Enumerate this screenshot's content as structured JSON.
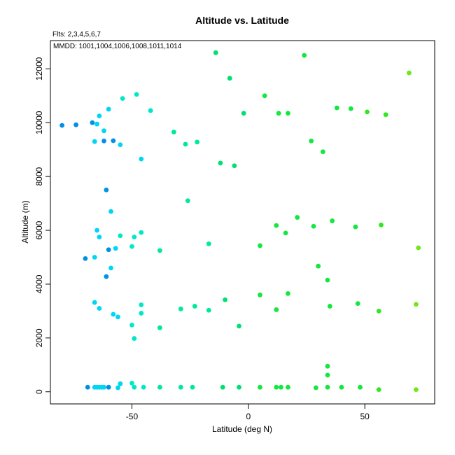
{
  "chart_data": {
    "type": "scatter",
    "title": "Altitude vs. Latitude",
    "subtitle": "Flts: 2,3,4,5,6,7",
    "annotation": "MMDD: 1001,1004,1006,1008,1011,1014",
    "xlabel": "Latitude (deg N)",
    "ylabel": "Altitude (m)",
    "xlim": [
      -85,
      80
    ],
    "ylim": [
      -450,
      13050
    ],
    "xticks": [
      -50,
      0,
      50
    ],
    "yticks": [
      0,
      2000,
      4000,
      6000,
      8000,
      10000,
      12000
    ],
    "grid": false,
    "color_encoding": "points colored by latitude (blue in south, cyan, green, yellow-green in north)",
    "points": [
      {
        "x": -80,
        "y": 9900,
        "color": "#0090e8"
      },
      {
        "x": -74,
        "y": 9920,
        "color": "#0090e8"
      },
      {
        "x": -67,
        "y": 10000,
        "color": "#0090e8"
      },
      {
        "x": -65,
        "y": 9950,
        "color": "#00d6f4"
      },
      {
        "x": -64,
        "y": 10250,
        "color": "#00d6f4"
      },
      {
        "x": -62,
        "y": 9700,
        "color": "#00d6f4"
      },
      {
        "x": -60,
        "y": 10500,
        "color": "#00d6f4"
      },
      {
        "x": -62,
        "y": 9320,
        "color": "#0090e8"
      },
      {
        "x": -58,
        "y": 9330,
        "color": "#0090e8"
      },
      {
        "x": -66,
        "y": 9300,
        "color": "#00d6f4"
      },
      {
        "x": -55,
        "y": 9180,
        "color": "#00d6f4"
      },
      {
        "x": -54,
        "y": 10900,
        "color": "#00e8c8"
      },
      {
        "x": -48,
        "y": 11050,
        "color": "#00e8c8"
      },
      {
        "x": -42,
        "y": 10450,
        "color": "#00e8c8"
      },
      {
        "x": -46,
        "y": 8650,
        "color": "#00d6f4"
      },
      {
        "x": -32,
        "y": 9650,
        "color": "#00e8a0"
      },
      {
        "x": -27,
        "y": 9200,
        "color": "#00e8a0"
      },
      {
        "x": -22,
        "y": 9280,
        "color": "#00e8a0"
      },
      {
        "x": -61,
        "y": 7500,
        "color": "#0090e8"
      },
      {
        "x": -59,
        "y": 6700,
        "color": "#00d6f4"
      },
      {
        "x": -26,
        "y": 7100,
        "color": "#00e8a0"
      },
      {
        "x": -65,
        "y": 6000,
        "color": "#00d6f4"
      },
      {
        "x": -64,
        "y": 5750,
        "color": "#00d6f4"
      },
      {
        "x": -55,
        "y": 5800,
        "color": "#00e8c8"
      },
      {
        "x": -49,
        "y": 5750,
        "color": "#00e8c8"
      },
      {
        "x": -46,
        "y": 5920,
        "color": "#00e8c8"
      },
      {
        "x": -60,
        "y": 5280,
        "color": "#0090e8"
      },
      {
        "x": -57,
        "y": 5330,
        "color": "#00d6f4"
      },
      {
        "x": -50,
        "y": 5400,
        "color": "#00e8c8"
      },
      {
        "x": -38,
        "y": 5250,
        "color": "#00e8a0"
      },
      {
        "x": -70,
        "y": 4950,
        "color": "#0090e8"
      },
      {
        "x": -66,
        "y": 5000,
        "color": "#00d6f4"
      },
      {
        "x": -59,
        "y": 4600,
        "color": "#00d6f4"
      },
      {
        "x": -61,
        "y": 4280,
        "color": "#0090e8"
      },
      {
        "x": -66,
        "y": 3320,
        "color": "#00d6f4"
      },
      {
        "x": -64,
        "y": 3100,
        "color": "#00d6f4"
      },
      {
        "x": -46,
        "y": 3230,
        "color": "#00e8c8"
      },
      {
        "x": -46,
        "y": 2920,
        "color": "#00e8c8"
      },
      {
        "x": -58,
        "y": 2880,
        "color": "#00d6f4"
      },
      {
        "x": -56,
        "y": 2780,
        "color": "#00d6f4"
      },
      {
        "x": -50,
        "y": 2480,
        "color": "#00e8c8"
      },
      {
        "x": -38,
        "y": 2380,
        "color": "#00e8a0"
      },
      {
        "x": -49,
        "y": 1980,
        "color": "#00e8c8"
      },
      {
        "x": -29,
        "y": 3080,
        "color": "#00e8a0"
      },
      {
        "x": -23,
        "y": 3180,
        "color": "#00e8a0"
      },
      {
        "x": -17,
        "y": 3030,
        "color": "#00e8a0"
      },
      {
        "x": -17,
        "y": 5500,
        "color": "#00e8a0"
      },
      {
        "x": -14,
        "y": 12600,
        "color": "#00e070"
      },
      {
        "x": -8,
        "y": 11650,
        "color": "#00e070"
      },
      {
        "x": -12,
        "y": 8500,
        "color": "#00e070"
      },
      {
        "x": -6,
        "y": 8400,
        "color": "#00e070"
      },
      {
        "x": -2,
        "y": 10350,
        "color": "#00e070"
      },
      {
        "x": 7,
        "y": 11000,
        "color": "#14e840"
      },
      {
        "x": 13,
        "y": 10350,
        "color": "#14e840"
      },
      {
        "x": 17,
        "y": 10350,
        "color": "#14e840"
      },
      {
        "x": 24,
        "y": 12500,
        "color": "#14e840"
      },
      {
        "x": 27,
        "y": 9320,
        "color": "#14e840"
      },
      {
        "x": 32,
        "y": 8920,
        "color": "#14e840"
      },
      {
        "x": 38,
        "y": 10550,
        "color": "#14e840"
      },
      {
        "x": 44,
        "y": 10520,
        "color": "#14e840"
      },
      {
        "x": 51,
        "y": 10400,
        "color": "#30e820"
      },
      {
        "x": 59,
        "y": 10300,
        "color": "#30e820"
      },
      {
        "x": 69,
        "y": 11850,
        "color": "#70e818"
      },
      {
        "x": 12,
        "y": 6180,
        "color": "#14e840"
      },
      {
        "x": 16,
        "y": 5900,
        "color": "#14e840"
      },
      {
        "x": 21,
        "y": 6480,
        "color": "#14e840"
      },
      {
        "x": 28,
        "y": 6150,
        "color": "#14e840"
      },
      {
        "x": 36,
        "y": 6350,
        "color": "#14e840"
      },
      {
        "x": 46,
        "y": 6130,
        "color": "#14e840"
      },
      {
        "x": 57,
        "y": 6200,
        "color": "#30e820"
      },
      {
        "x": 73,
        "y": 5350,
        "color": "#70e818"
      },
      {
        "x": 5,
        "y": 5430,
        "color": "#14e840"
      },
      {
        "x": 30,
        "y": 4670,
        "color": "#14e840"
      },
      {
        "x": 34,
        "y": 4150,
        "color": "#14e840"
      },
      {
        "x": -10,
        "y": 3420,
        "color": "#00e070"
      },
      {
        "x": 5,
        "y": 3600,
        "color": "#14e840"
      },
      {
        "x": 17,
        "y": 3650,
        "color": "#14e840"
      },
      {
        "x": 12,
        "y": 3050,
        "color": "#14e840"
      },
      {
        "x": 35,
        "y": 3180,
        "color": "#14e840"
      },
      {
        "x": 47,
        "y": 3280,
        "color": "#14e840"
      },
      {
        "x": 56,
        "y": 3000,
        "color": "#30e820"
      },
      {
        "x": 72,
        "y": 3250,
        "color": "#70e818"
      },
      {
        "x": -4,
        "y": 2440,
        "color": "#00e070"
      },
      {
        "x": 34,
        "y": 950,
        "color": "#14e840"
      },
      {
        "x": 34,
        "y": 620,
        "color": "#14e840"
      },
      {
        "x": -55,
        "y": 300,
        "color": "#00d6f4"
      },
      {
        "x": -50,
        "y": 320,
        "color": "#00e8c8"
      },
      {
        "x": -69,
        "y": 170,
        "color": "#0090e8"
      },
      {
        "x": -66,
        "y": 170,
        "color": "#00d6f4"
      },
      {
        "x": -65,
        "y": 170,
        "color": "#00d6f4"
      },
      {
        "x": -64,
        "y": 170,
        "color": "#00d6f4"
      },
      {
        "x": -63,
        "y": 170,
        "color": "#00d6f4"
      },
      {
        "x": -62,
        "y": 170,
        "color": "#00d6f4"
      },
      {
        "x": -60,
        "y": 170,
        "color": "#0090e8"
      },
      {
        "x": -56,
        "y": 150,
        "color": "#00d6f4"
      },
      {
        "x": -49,
        "y": 170,
        "color": "#00e8c8"
      },
      {
        "x": -45,
        "y": 170,
        "color": "#00e8c8"
      },
      {
        "x": -38,
        "y": 170,
        "color": "#00e8a0"
      },
      {
        "x": -29,
        "y": 170,
        "color": "#00e8a0"
      },
      {
        "x": -24,
        "y": 170,
        "color": "#00e8a0"
      },
      {
        "x": -11,
        "y": 170,
        "color": "#00e070"
      },
      {
        "x": -4,
        "y": 170,
        "color": "#00e070"
      },
      {
        "x": 5,
        "y": 170,
        "color": "#14e840"
      },
      {
        "x": 12,
        "y": 170,
        "color": "#14e840"
      },
      {
        "x": 14,
        "y": 170,
        "color": "#14e840"
      },
      {
        "x": 17,
        "y": 170,
        "color": "#14e840"
      },
      {
        "x": 29,
        "y": 150,
        "color": "#14e840"
      },
      {
        "x": 34,
        "y": 170,
        "color": "#14e840"
      },
      {
        "x": 40,
        "y": 170,
        "color": "#14e840"
      },
      {
        "x": 48,
        "y": 170,
        "color": "#14e840"
      },
      {
        "x": 56,
        "y": 80,
        "color": "#30e820"
      },
      {
        "x": 72,
        "y": 80,
        "color": "#70e818"
      }
    ]
  }
}
